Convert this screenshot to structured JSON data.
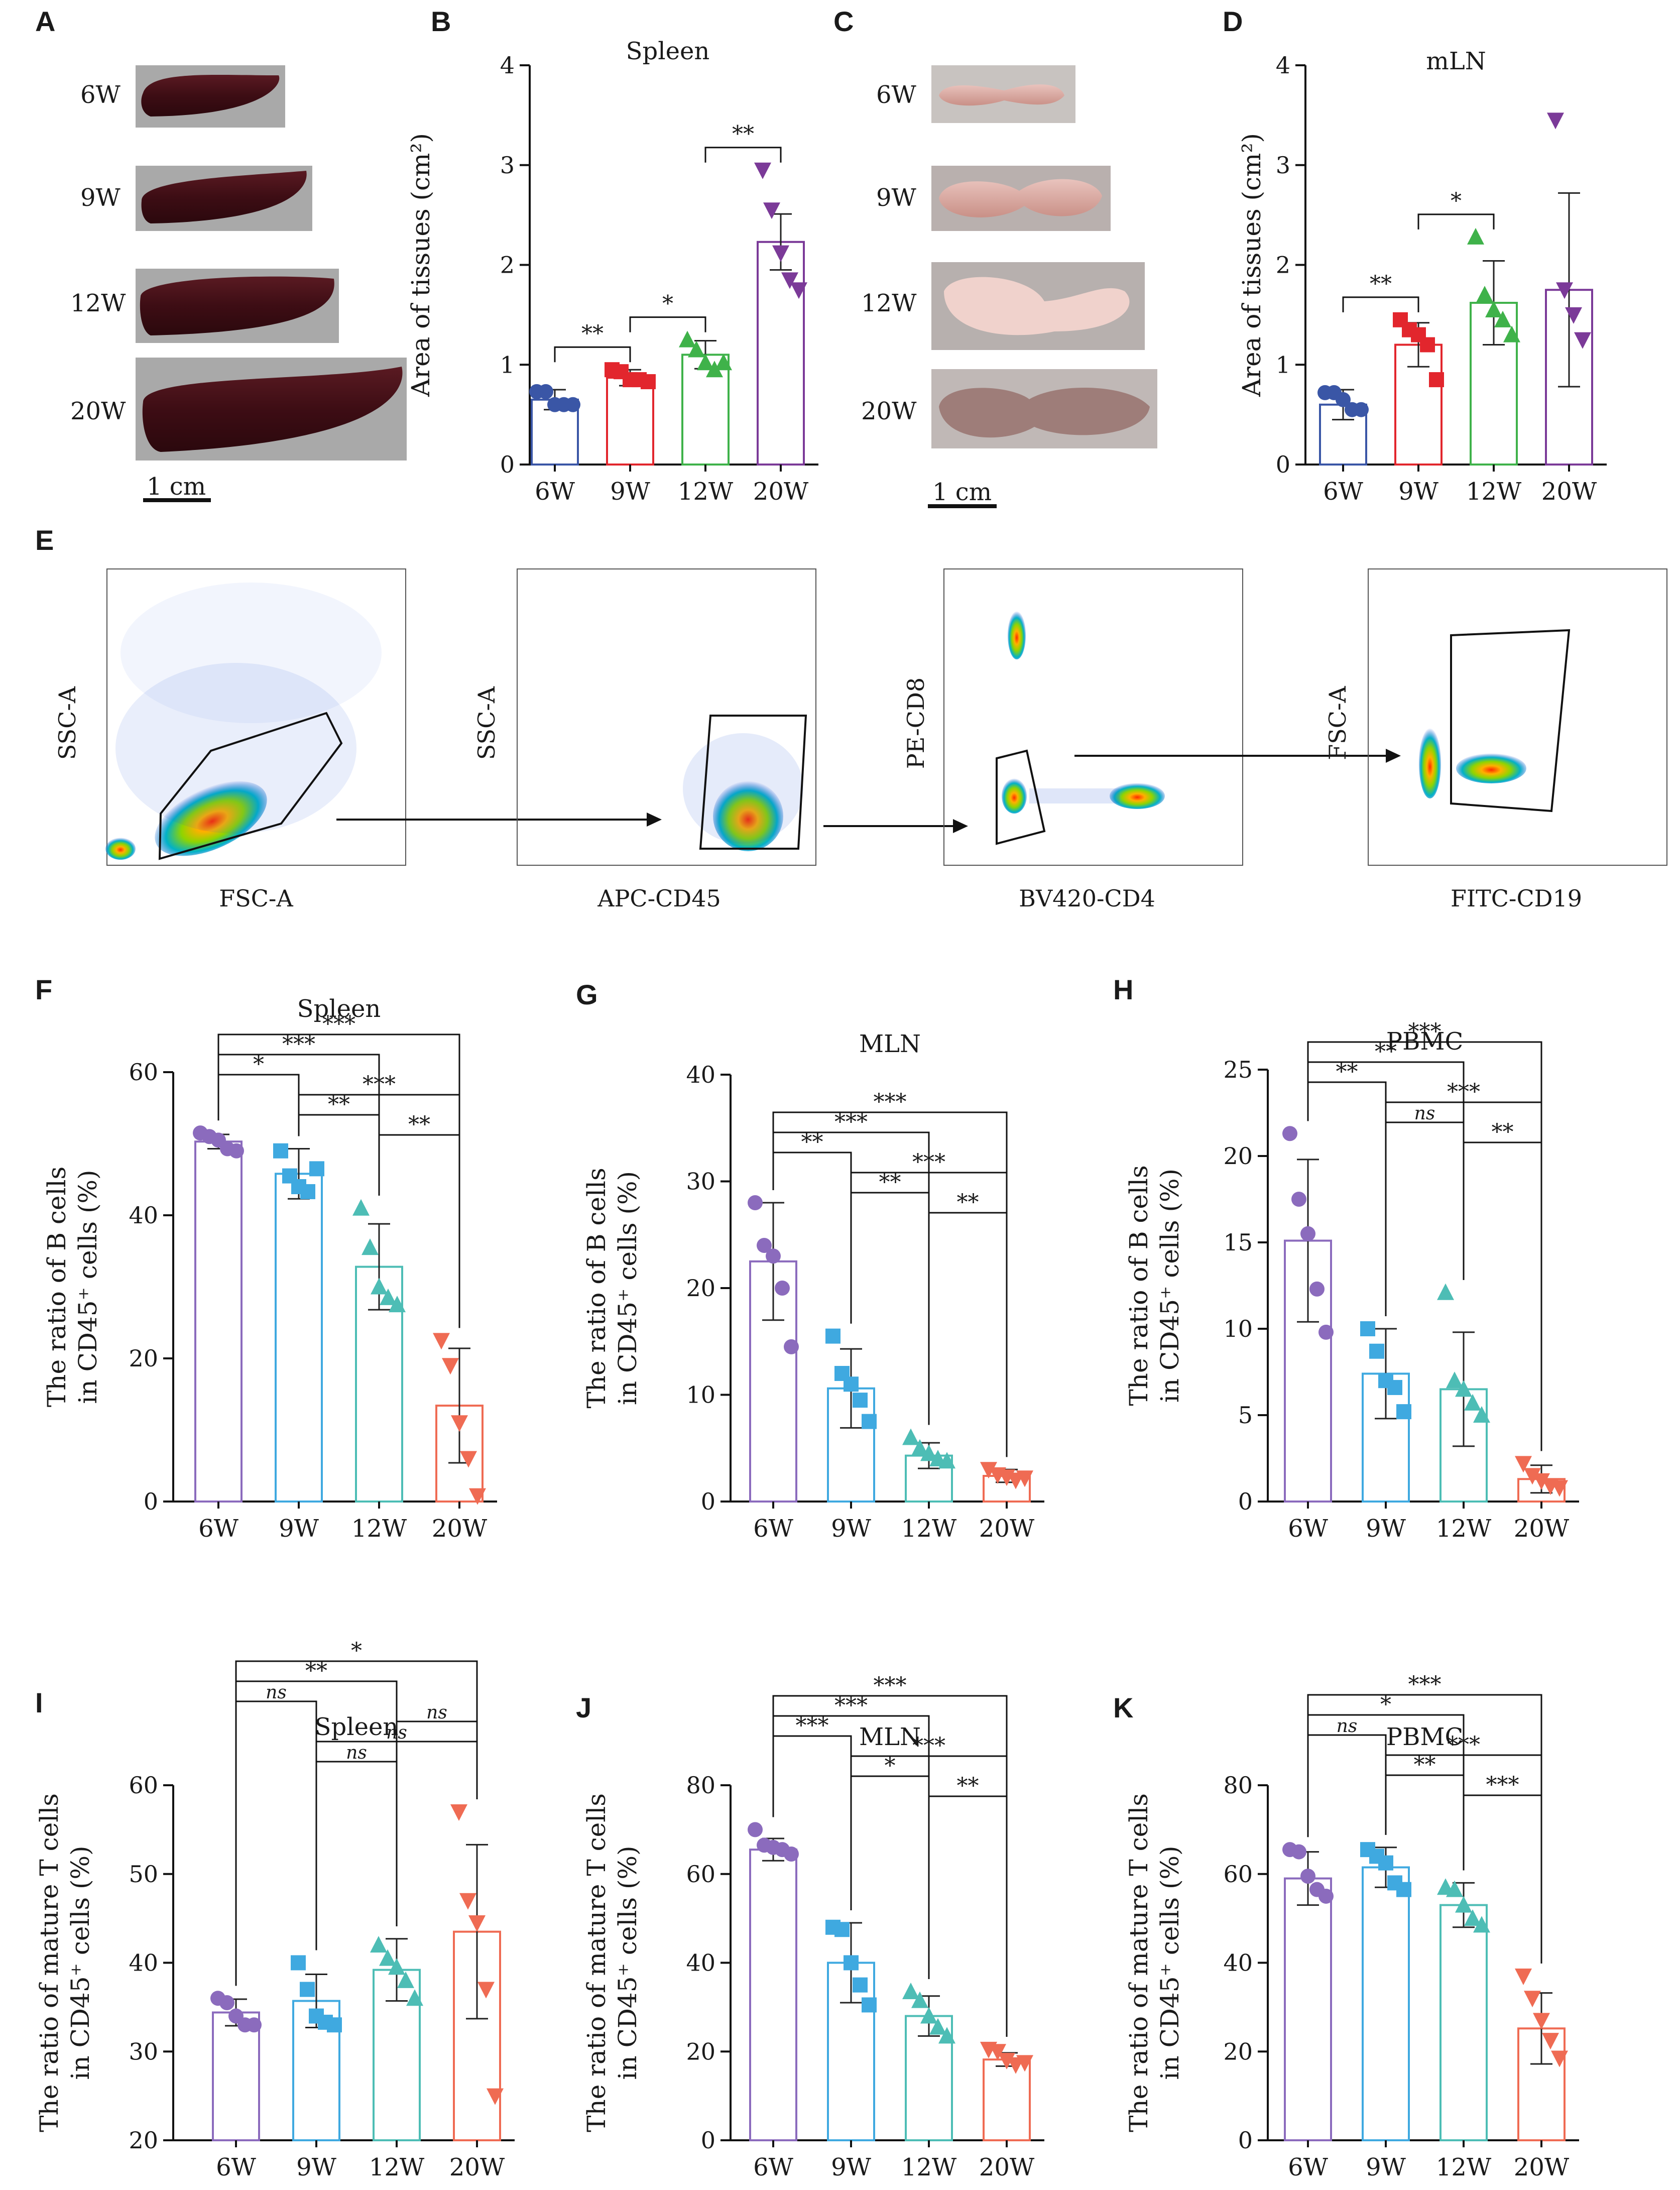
{
  "panels": {
    "A": {
      "letter": "A",
      "labels": [
        "6W",
        "9W",
        "12W",
        "20W"
      ],
      "scale": "1 cm"
    },
    "C": {
      "letter": "C",
      "labels": [
        "6W",
        "9W",
        "12W",
        "20W"
      ],
      "scale": "1 cm"
    },
    "E": {
      "letter": "E",
      "plots": [
        {
          "y": "SSC-A",
          "x": "FSC-A"
        },
        {
          "y": "SSC-A",
          "x": "APC-CD45"
        },
        {
          "y": "PE-CD8",
          "x": "BV420-CD4"
        },
        {
          "y": "FSC-A",
          "x": "FITC-CD19"
        }
      ]
    }
  },
  "colors": {
    "6W": "#3a56a6",
    "9W": "#e2262d",
    "12W": "#3fb24a",
    "20W": "#7b3a98",
    "6W_b": "#8b6bbd",
    "9W_b": "#3fa9e0",
    "12W_b": "#4dbdb5",
    "20W_b": "#ef6b53"
  },
  "chart_data": [
    {
      "id": "B",
      "letter": "B",
      "type": "bar",
      "title": "Spleen",
      "ylabel": "Area of tissues (cm²)",
      "categories": [
        "6W",
        "9W",
        "12W",
        "20W"
      ],
      "ylim": [
        0,
        4
      ],
      "yticks": [
        0,
        1,
        2,
        3,
        4
      ],
      "means": [
        0.65,
        0.87,
        1.1,
        2.23
      ],
      "sd": [
        0.1,
        0.08,
        0.14,
        0.28
      ],
      "points": [
        [
          0.73,
          0.73,
          0.6,
          0.6,
          0.6
        ],
        [
          0.95,
          0.93,
          0.85,
          0.85,
          0.83
        ],
        [
          1.25,
          1.15,
          1.02,
          0.95,
          1.02
        ],
        [
          2.95,
          2.55,
          2.12,
          1.85,
          1.75
        ]
      ],
      "markers": [
        "circle",
        "square",
        "triangle",
        "tri-down"
      ],
      "significance": [
        {
          "from": 0,
          "to": 1,
          "label": "**"
        },
        {
          "from": 1,
          "to": 2,
          "label": "*"
        },
        {
          "from": 2,
          "to": 3,
          "label": "**"
        }
      ]
    },
    {
      "id": "D",
      "letter": "D",
      "type": "bar",
      "title": "mLN",
      "ylabel": "Area of tissues (cm²)",
      "categories": [
        "6W",
        "9W",
        "12W",
        "20W"
      ],
      "ylim": [
        0,
        4
      ],
      "yticks": [
        0,
        1,
        2,
        3,
        4
      ],
      "means": [
        0.6,
        1.2,
        1.62,
        1.75
      ],
      "sd": [
        0.15,
        0.22,
        0.42,
        0.97
      ],
      "points": [
        [
          0.72,
          0.72,
          0.65,
          0.55,
          0.55
        ],
        [
          1.45,
          1.35,
          1.3,
          1.2,
          0.85
        ],
        [
          2.28,
          1.7,
          1.55,
          1.45,
          1.3
        ],
        [
          3.45,
          1.75,
          1.5,
          1.25
        ]
      ],
      "markers": [
        "circle",
        "square",
        "triangle",
        "tri-down"
      ],
      "significance": [
        {
          "from": 0,
          "to": 1,
          "label": "**"
        },
        {
          "from": 1,
          "to": 2,
          "label": "*"
        }
      ]
    },
    {
      "id": "F",
      "letter": "F",
      "type": "bar",
      "title": "Spleen",
      "ylabel": "The ratio of B cells",
      "ylabel2": "in CD45⁺ cells (%)",
      "categories": [
        "6W",
        "9W",
        "12W",
        "20W"
      ],
      "ylim": [
        0,
        60
      ],
      "yticks": [
        0,
        20,
        40,
        60
      ],
      "means": [
        50.3,
        45.8,
        32.8,
        13.4
      ],
      "sd": [
        1.0,
        3.5,
        6.0,
        8.0
      ],
      "points": [
        [
          51.5,
          51.0,
          50.5,
          49.3,
          49.0
        ],
        [
          49.0,
          45.5,
          44.0,
          43.3,
          46.5
        ],
        [
          41.0,
          35.5,
          30.0,
          28.5,
          27.5
        ],
        [
          22.5,
          19.0,
          11.0,
          6.0,
          0.8
        ]
      ],
      "markers": [
        "circle",
        "square",
        "triangle",
        "tri-down"
      ],
      "significance": [
        {
          "from": 0,
          "to": 3,
          "label": "***"
        },
        {
          "from": 0,
          "to": 2,
          "label": "***"
        },
        {
          "from": 0,
          "to": 1,
          "label": "*"
        },
        {
          "from": 1,
          "to": 3,
          "label": "***"
        },
        {
          "from": 1,
          "to": 2,
          "label": "**"
        },
        {
          "from": 2,
          "to": 3,
          "label": "**"
        }
      ]
    },
    {
      "id": "G",
      "letter": "G",
      "type": "bar",
      "title": "MLN",
      "ylabel": "The ratio of B cells",
      "ylabel2": "in CD45⁺ cells (%)",
      "categories": [
        "6W",
        "9W",
        "12W",
        "20W"
      ],
      "ylim": [
        0,
        40
      ],
      "yticks": [
        0,
        10,
        20,
        30,
        40
      ],
      "means": [
        22.5,
        10.6,
        4.3,
        2.4
      ],
      "sd": [
        5.5,
        3.7,
        1.2,
        0.6
      ],
      "points": [
        [
          28.0,
          24.0,
          23.0,
          20.0,
          14.5
        ],
        [
          15.5,
          12.0,
          11.0,
          9.5,
          7.5
        ],
        [
          6.0,
          5.0,
          4.5,
          4.0,
          3.8
        ],
        [
          3.0,
          2.5,
          2.3,
          2.0,
          2.2
        ]
      ],
      "markers": [
        "circle",
        "square",
        "triangle",
        "tri-down"
      ],
      "significance": [
        {
          "from": 0,
          "to": 3,
          "label": "***"
        },
        {
          "from": 0,
          "to": 2,
          "label": "***"
        },
        {
          "from": 0,
          "to": 1,
          "label": "**"
        },
        {
          "from": 1,
          "to": 3,
          "label": "***"
        },
        {
          "from": 1,
          "to": 2,
          "label": "**"
        },
        {
          "from": 2,
          "to": 3,
          "label": "**"
        }
      ]
    },
    {
      "id": "H",
      "letter": "H",
      "type": "bar",
      "title": "PBMC",
      "ylabel": "The ratio of B cells",
      "ylabel2": "in CD45⁺ cells (%)",
      "categories": [
        "6W",
        "9W",
        "12W",
        "20W"
      ],
      "ylim": [
        0,
        25
      ],
      "yticks": [
        0,
        5,
        10,
        15,
        20,
        25
      ],
      "means": [
        15.1,
        7.4,
        6.5,
        1.3
      ],
      "sd": [
        4.7,
        2.6,
        3.3,
        0.8
      ],
      "points": [
        [
          21.3,
          17.5,
          15.5,
          12.3,
          9.8
        ],
        [
          10.0,
          8.7,
          7.0,
          6.6,
          5.2
        ],
        [
          12.1,
          7.0,
          6.5,
          5.7,
          5.0
        ],
        [
          2.2,
          1.5,
          1.2,
          0.9,
          0.8
        ]
      ],
      "markers": [
        "circle",
        "square",
        "triangle",
        "tri-down"
      ],
      "significance": [
        {
          "from": 0,
          "to": 3,
          "label": "***"
        },
        {
          "from": 0,
          "to": 2,
          "label": "**"
        },
        {
          "from": 0,
          "to": 1,
          "label": "**"
        },
        {
          "from": 1,
          "to": 3,
          "label": "***"
        },
        {
          "from": 1,
          "to": 2,
          "label": "ns"
        },
        {
          "from": 2,
          "to": 3,
          "label": "**"
        }
      ]
    },
    {
      "id": "I",
      "letter": "I",
      "type": "bar",
      "title": "Spleen",
      "ylabel": "The ratio of mature T cells",
      "ylabel2": "in CD45⁺ cells (%)",
      "categories": [
        "6W",
        "9W",
        "12W",
        "20W"
      ],
      "ylim": [
        20,
        60
      ],
      "yticks": [
        20,
        30,
        40,
        50,
        60
      ],
      "means": [
        34.4,
        35.7,
        39.2,
        43.5
      ],
      "sd": [
        1.5,
        3.0,
        3.5,
        9.8
      ],
      "points": [
        [
          36.0,
          35.5,
          34.0,
          33.0,
          33.0
        ],
        [
          40.0,
          37.0,
          34.0,
          33.3,
          33.0
        ],
        [
          42.0,
          40.5,
          39.5,
          38.0,
          36.0
        ],
        [
          57.0,
          47.0,
          44.5,
          37.0,
          25.0
        ]
      ],
      "markers": [
        "circle",
        "square",
        "triangle",
        "tri-down"
      ],
      "significance": [
        {
          "from": 0,
          "to": 3,
          "label": "*"
        },
        {
          "from": 0,
          "to": 2,
          "label": "**"
        },
        {
          "from": 0,
          "to": 1,
          "label": "ns"
        },
        {
          "from": 2,
          "to": 3,
          "label": "ns"
        },
        {
          "from": 1,
          "to": 3,
          "label": "ns"
        },
        {
          "from": 1,
          "to": 2,
          "label": "ns"
        }
      ]
    },
    {
      "id": "J",
      "letter": "J",
      "type": "bar",
      "title": "MLN",
      "ylabel": "The ratio of mature T cells",
      "ylabel2": "in CD45⁺ cells (%)",
      "categories": [
        "6W",
        "9W",
        "12W",
        "20W"
      ],
      "ylim": [
        0,
        80
      ],
      "yticks": [
        0,
        20,
        40,
        60,
        80
      ],
      "means": [
        65.5,
        40.0,
        28.0,
        18.2
      ],
      "sd": [
        2.5,
        9.0,
        4.5,
        1.5
      ],
      "points": [
        [
          70.0,
          66.5,
          66.0,
          65.5,
          64.5
        ],
        [
          48.0,
          47.5,
          40.0,
          35.0,
          30.5
        ],
        [
          33.5,
          31.5,
          28.0,
          25.5,
          23.5
        ],
        [
          20.5,
          20.0,
          18.0,
          17.0,
          17.5
        ]
      ],
      "markers": [
        "circle",
        "square",
        "triangle",
        "tri-down"
      ],
      "significance": [
        {
          "from": 0,
          "to": 3,
          "label": "***"
        },
        {
          "from": 0,
          "to": 2,
          "label": "***"
        },
        {
          "from": 0,
          "to": 1,
          "label": "***"
        },
        {
          "from": 1,
          "to": 3,
          "label": "***"
        },
        {
          "from": 1,
          "to": 2,
          "label": "*"
        },
        {
          "from": 2,
          "to": 3,
          "label": "**"
        }
      ]
    },
    {
      "id": "K",
      "letter": "K",
      "type": "bar",
      "title": "PBMC",
      "ylabel": "The ratio of mature T cells",
      "ylabel2": "in CD45⁺ cells (%)",
      "categories": [
        "6W",
        "9W",
        "12W",
        "20W"
      ],
      "ylim": [
        0,
        80
      ],
      "yticks": [
        0,
        20,
        40,
        60,
        80
      ],
      "means": [
        59.0,
        61.5,
        53.0,
        25.2
      ],
      "sd": [
        6.0,
        4.5,
        5.0,
        8.0
      ],
      "points": [
        [
          65.5,
          65.0,
          59.5,
          56.5,
          55.0
        ],
        [
          65.5,
          64.0,
          62.5,
          58.0,
          56.5
        ],
        [
          57.0,
          56.5,
          53.0,
          50.0,
          48.5
        ],
        [
          37.0,
          32.0,
          27.0,
          22.5,
          18.5
        ]
      ],
      "markers": [
        "circle",
        "square",
        "triangle",
        "tri-down"
      ],
      "significance": [
        {
          "from": 0,
          "to": 3,
          "label": "***"
        },
        {
          "from": 0,
          "to": 2,
          "label": "*"
        },
        {
          "from": 0,
          "to": 1,
          "label": "ns"
        },
        {
          "from": 1,
          "to": 3,
          "label": "***"
        },
        {
          "from": 1,
          "to": 2,
          "label": "**"
        },
        {
          "from": 2,
          "to": 3,
          "label": "***"
        }
      ]
    }
  ]
}
